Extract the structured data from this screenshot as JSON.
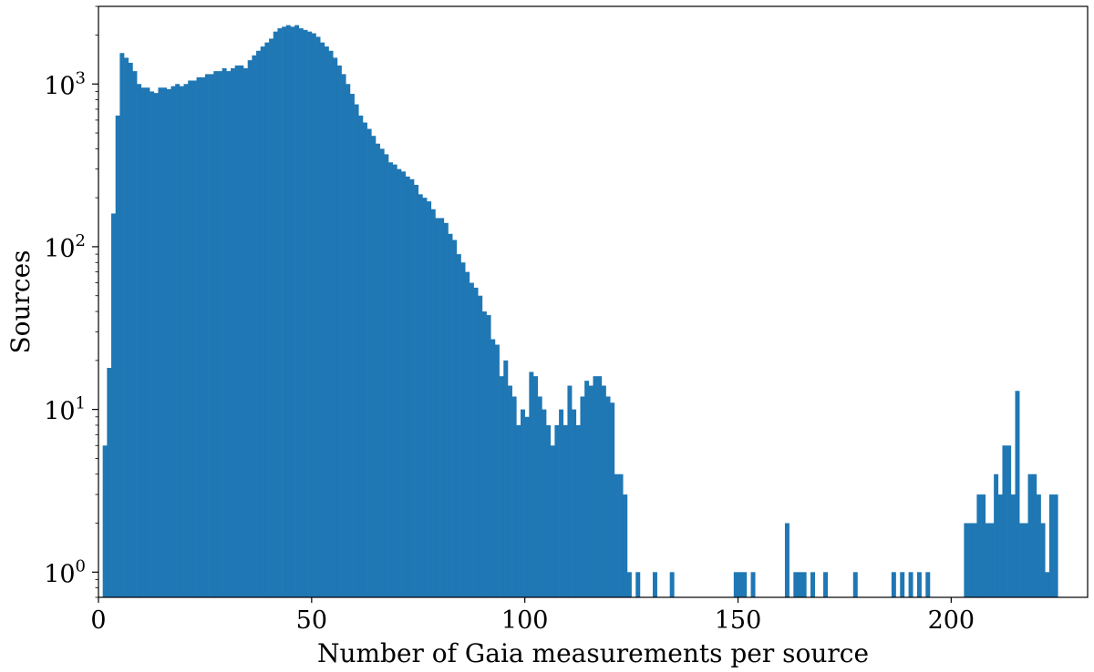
{
  "chart_data": {
    "type": "bar",
    "title": "",
    "xlabel": "Number of Gaia measurements per source",
    "ylabel": "Sources",
    "xlim": [
      0,
      232
    ],
    "ylim": [
      0.7,
      3000
    ],
    "yscale": "log",
    "x_ticks": [
      {
        "value": 0,
        "label": "0"
      },
      {
        "value": 50,
        "label": "50"
      },
      {
        "value": 100,
        "label": "100"
      },
      {
        "value": 150,
        "label": "150"
      },
      {
        "value": 200,
        "label": "200"
      }
    ],
    "y_ticks": [
      {
        "value": 1,
        "base": "10",
        "exp": "0"
      },
      {
        "value": 10,
        "base": "10",
        "exp": "1"
      },
      {
        "value": 100,
        "base": "10",
        "exp": "2"
      },
      {
        "value": 1000,
        "base": "10",
        "exp": "3"
      }
    ],
    "bar_color": "#1f77b4",
    "bin_start": 1,
    "bin_width": 1,
    "counts": [
      6,
      18,
      160,
      640,
      1550,
      1450,
      1350,
      1200,
      1000,
      950,
      950,
      900,
      880,
      950,
      950,
      930,
      970,
      1000,
      970,
      1000,
      1050,
      1050,
      1100,
      1100,
      1150,
      1150,
      1200,
      1200,
      1250,
      1200,
      1250,
      1300,
      1300,
      1250,
      1400,
      1500,
      1600,
      1700,
      1800,
      1900,
      2100,
      2200,
      2250,
      2300,
      2250,
      2300,
      2200,
      2150,
      2100,
      2050,
      1950,
      1800,
      1700,
      1600,
      1450,
      1300,
      1150,
      1000,
      870,
      750,
      640,
      580,
      530,
      480,
      430,
      400,
      370,
      330,
      320,
      300,
      290,
      270,
      260,
      240,
      210,
      200,
      190,
      170,
      150,
      150,
      140,
      120,
      110,
      90,
      80,
      70,
      60,
      56,
      50,
      40,
      38,
      27,
      25,
      16,
      20,
      14,
      12,
      8,
      10,
      9,
      17,
      16,
      12,
      10,
      8,
      6,
      8,
      10,
      8,
      14,
      10,
      8,
      12,
      15,
      14,
      16,
      16,
      14,
      12,
      11,
      4,
      4,
      3,
      1,
      0,
      1,
      0,
      0,
      0,
      1,
      0,
      0,
      0,
      1,
      0,
      0,
      0,
      0,
      0,
      0,
      0,
      0,
      0,
      0,
      0,
      0,
      0,
      0,
      1,
      1,
      1,
      0,
      1,
      0,
      0,
      0,
      0,
      0,
      0,
      0,
      2,
      0,
      1,
      1,
      1,
      0,
      1,
      0,
      0,
      1,
      0,
      0,
      0,
      0,
      0,
      0,
      1,
      0,
      0,
      0,
      0,
      0,
      0,
      0,
      0,
      1,
      0,
      1,
      0,
      1,
      0,
      1,
      0,
      1,
      0,
      0,
      0,
      0,
      0,
      0,
      0,
      0,
      2,
      2,
      2,
      3,
      3,
      2,
      2,
      4,
      3,
      6,
      6,
      3,
      13,
      2,
      2,
      4,
      4,
      3,
      2,
      1,
      3,
      3
    ]
  }
}
